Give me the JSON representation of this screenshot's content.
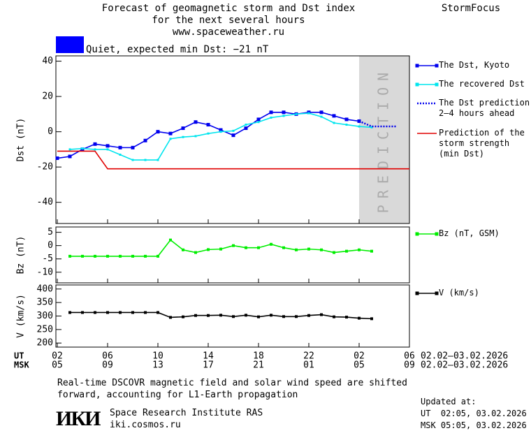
{
  "header": {
    "title_lines": [
      "Forecast of geomagnetic storm and Dst index",
      "for the next several hours",
      "www.spaceweather.ru"
    ],
    "brand": "StormFocus",
    "status": "Quiet, expected min Dst: −21 nT",
    "status_color": "#0000ff"
  },
  "x_axis": {
    "xlim": [
      0,
      28
    ],
    "xticks": [
      {
        "value": 0,
        "label": "02"
      },
      {
        "value": 4,
        "label": "06"
      },
      {
        "value": 8,
        "label": "10"
      },
      {
        "value": 12,
        "label": "14"
      },
      {
        "value": 16,
        "label": "18"
      },
      {
        "value": 20,
        "label": "22"
      },
      {
        "value": 24,
        "label": "02"
      },
      {
        "value": 28,
        "label": "06"
      }
    ],
    "xticks_msk": [
      {
        "value": 0,
        "label": "05"
      },
      {
        "value": 4,
        "label": "09"
      },
      {
        "value": 8,
        "label": "13"
      },
      {
        "value": 12,
        "label": "17"
      },
      {
        "value": 16,
        "label": "21"
      },
      {
        "value": 20,
        "label": "01"
      },
      {
        "value": 24,
        "label": "05"
      },
      {
        "value": 28,
        "label": "09"
      }
    ],
    "rows": [
      "UT",
      "MSK"
    ],
    "ranges": [
      "02.02–03.02.2026",
      "02.02–03.02.2026"
    ]
  },
  "chart_data": [
    {
      "type": "line",
      "ylabel": "Dst (nT)",
      "ylim": [
        -52,
        43
      ],
      "yticks": [
        40,
        20,
        0,
        -20,
        -40
      ],
      "band": {
        "from": 24,
        "to": 28,
        "label": "PREDICTION",
        "color": "#d9d9d9"
      },
      "series": [
        {
          "name": "The Dst, Kyoto",
          "color": "#0000ee",
          "line_style": "solid",
          "marker_size": 5,
          "x": [
            0,
            1,
            2,
            3,
            4,
            5,
            6,
            7,
            8,
            9,
            10,
            11,
            12,
            13,
            14,
            15,
            16,
            17,
            18,
            19,
            20,
            21,
            22,
            23,
            24
          ],
          "values": [
            -15,
            -14,
            -10,
            -7,
            -8,
            -9,
            -9,
            -5,
            0,
            -1,
            2,
            5.5,
            4,
            1,
            -2,
            2,
            7,
            11,
            11,
            10,
            11,
            11,
            9,
            7,
            6
          ]
        },
        {
          "name": "The recovered Dst",
          "color": "#00e5ee",
          "line_style": "solid",
          "marker_size": 3,
          "x": [
            1,
            2,
            3,
            4,
            5,
            6,
            7,
            8,
            9,
            10,
            11,
            12,
            13,
            14,
            15,
            16,
            17,
            18,
            19,
            20,
            21,
            22,
            23,
            24,
            25
          ],
          "values": [
            -10,
            -9.5,
            -10,
            -10,
            -13,
            -16,
            -16,
            -16,
            -4,
            -3,
            -2.5,
            -1,
            0,
            0.5,
            4,
            5.5,
            8,
            9,
            10,
            10.5,
            8.5,
            5,
            4,
            3,
            2.5
          ]
        },
        {
          "name": "The Dst prediction 2–4 hours ahead",
          "color": "#0000ee",
          "line_style": "dotted",
          "marker_size": 0,
          "x": [
            24,
            25,
            26,
            27
          ],
          "values": [
            6,
            3,
            3,
            3
          ]
        },
        {
          "name": "Prediction of the storm strength (min Dst)",
          "color": "#e00000",
          "line_style": "solid",
          "marker_size": 0,
          "x": [
            0,
            3,
            4,
            28
          ],
          "values": [
            -11,
            -11,
            -21,
            -21
          ]
        }
      ]
    },
    {
      "type": "line",
      "ylabel": "Bz (nT)",
      "ylim": [
        -14,
        7
      ],
      "yticks": [
        5,
        0,
        -5,
        -10
      ],
      "series": [
        {
          "name": "Bz (nT, GSM)",
          "color": "#00ee00",
          "line_style": "solid",
          "marker_size": 4,
          "x": [
            1,
            2,
            3,
            4,
            5,
            6,
            7,
            8,
            9,
            10,
            11,
            12,
            13,
            14,
            15,
            16,
            17,
            18,
            19,
            20,
            21,
            22,
            23,
            24,
            25
          ],
          "values": [
            -4,
            -4,
            -4,
            -4,
            -4,
            -4,
            -4,
            -4,
            2.1,
            -1.6,
            -2.6,
            -1.5,
            -1.3,
            0,
            -0.8,
            -0.8,
            0.5,
            -0.8,
            -1.6,
            -1.3,
            -1.6,
            -2.6,
            -2.1,
            -1.6,
            -2.1
          ]
        }
      ]
    },
    {
      "type": "line",
      "ylabel": "V (km/s)",
      "ylim": [
        185,
        415
      ],
      "yticks": [
        400,
        350,
        300,
        250,
        200
      ],
      "series": [
        {
          "name": "V (km/s)",
          "color": "#000000",
          "line_style": "solid",
          "marker_size": 4,
          "x": [
            1,
            2,
            3,
            4,
            5,
            6,
            7,
            8,
            9,
            10,
            11,
            12,
            13,
            14,
            15,
            16,
            17,
            18,
            19,
            20,
            21,
            22,
            23,
            24,
            25
          ],
          "values": [
            313,
            313,
            313,
            313,
            313,
            313,
            313,
            313,
            295,
            297,
            302,
            302,
            303,
            298,
            303,
            297,
            303,
            298,
            298,
            302,
            305,
            297,
            296,
            292,
            290
          ]
        }
      ]
    }
  ],
  "footer": {
    "note": "Real-time DSCOVR magnetic field and solar wind speed are shifted forward, accounting for L1-Earth propagation",
    "logo": "ИКИ",
    "institute": "Space Research Institute RAS",
    "site": "iki.cosmos.ru",
    "updated": [
      "Updated at:",
      "UT  02:05, 03.02.2026",
      "MSK 05:05, 03.02.2026"
    ]
  }
}
